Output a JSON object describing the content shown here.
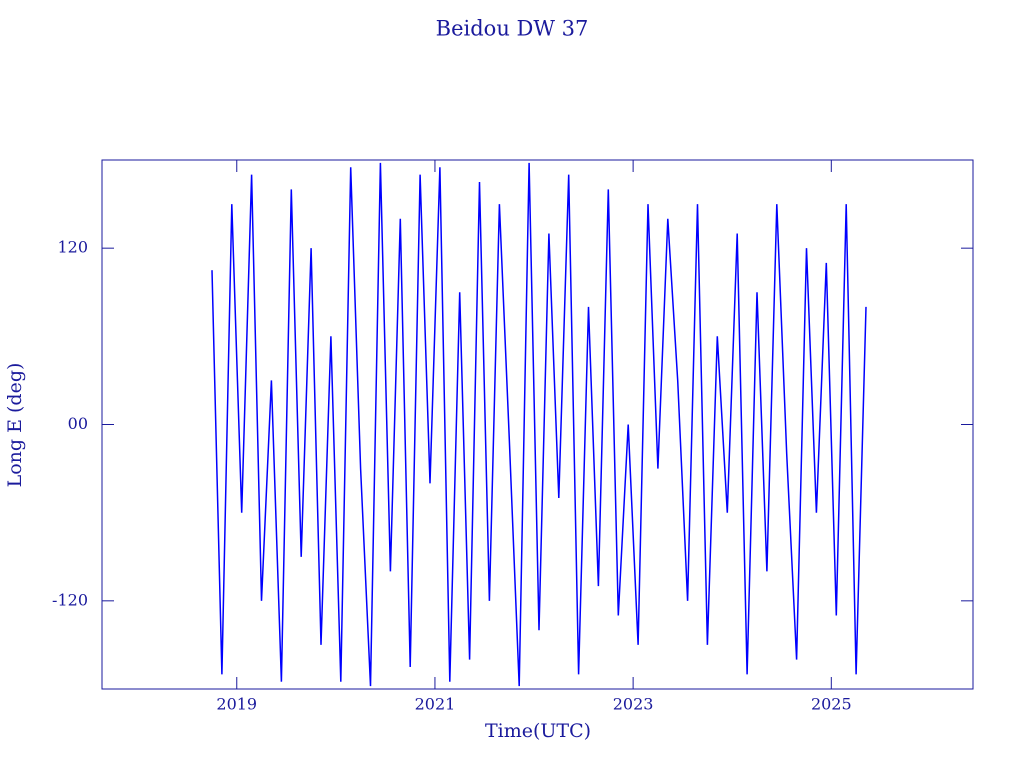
{
  "chart_data": {
    "type": "line",
    "title": "Beidou DW 37",
    "x_label": "Time(UTC)",
    "y_label": "Long E (deg)",
    "x": [
      2018.75,
      2018.85,
      2018.95,
      2019.05,
      2019.15,
      2019.25,
      2019.35,
      2019.45,
      2019.55,
      2019.65,
      2019.75,
      2019.85,
      2019.95,
      2020.05,
      2020.15,
      2020.25,
      2020.35,
      2020.45,
      2020.55,
      2020.65,
      2020.75,
      2020.85,
      2020.95,
      2021.05,
      2021.15,
      2021.25,
      2021.35,
      2021.45,
      2021.55,
      2021.65,
      2021.75,
      2021.85,
      2021.95,
      2022.05,
      2022.15,
      2022.25,
      2022.35,
      2022.45,
      2022.55,
      2022.65,
      2022.75,
      2022.85,
      2022.95,
      2023.05,
      2023.15,
      2023.25,
      2023.35,
      2023.45,
      2023.55,
      2023.65,
      2023.75,
      2023.85,
      2023.95,
      2024.05,
      2024.15,
      2024.25,
      2024.35,
      2024.45,
      2024.55,
      2024.65,
      2024.75,
      2024.85,
      2024.95,
      2025.05,
      2025.15,
      2025.25,
      2025.35
    ],
    "series": [
      {
        "color": "#0000ff",
        "values": [
          105,
          -170,
          150,
          -60,
          170,
          -120,
          30,
          -175,
          160,
          -90,
          120,
          -150,
          60,
          -175,
          175,
          -30,
          -178,
          178,
          -100,
          140,
          -165,
          170,
          -40,
          175,
          -175,
          90,
          -160,
          165,
          -120,
          150,
          -10,
          -178,
          178,
          -140,
          130,
          -50,
          170,
          -170,
          80,
          -110,
          160,
          -130,
          0,
          -150,
          150,
          -30,
          140,
          30,
          -120,
          150,
          -150,
          60,
          -60,
          130,
          -170,
          90,
          -100,
          150,
          -20,
          -160,
          120,
          -60,
          110,
          -130,
          150,
          -170,
          80
        ]
      }
    ],
    "xlim": [
      2017.64,
      2026.43
    ],
    "xticks": [
      2019,
      2021,
      2023,
      2025
    ],
    "ylim": [
      -180,
      180
    ],
    "yticks": [
      -120,
      {
        "value": 0,
        "label": "00"
      },
      120
    ],
    "axis_color": "#1a1a9c"
  }
}
